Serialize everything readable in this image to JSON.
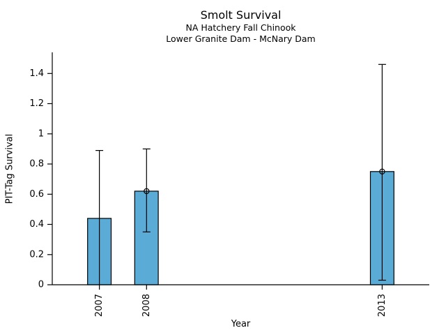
{
  "chart_data": {
    "type": "bar",
    "title": "Smolt Survival",
    "subtitle1": "NA Hatchery Fall Chinook",
    "subtitle2": "Lower Granite Dam - McNary Dam",
    "xlabel": "Year",
    "ylabel": "PIT-Tag Survival",
    "categories": [
      "2007",
      "2008",
      "2013"
    ],
    "x": [
      2007,
      2008,
      2013
    ],
    "series": [
      {
        "name": "PIT-Tag Survival",
        "values": [
          0.44,
          0.62,
          0.75
        ],
        "ci_low": [
          0,
          0.35,
          0.03
        ],
        "ci_high": [
          0.89,
          0.9,
          1.46
        ],
        "point_marker": [
          false,
          true,
          true
        ],
        "lower_cap": [
          false,
          true,
          true
        ]
      }
    ],
    "y_ticks": [
      0,
      0.2,
      0.4,
      0.6,
      0.8,
      1,
      1.2,
      1.4
    ],
    "y_tick_labels": [
      "0",
      "0.2",
      "0.4",
      "0.6",
      "0.8",
      "1",
      "1.2",
      "1.4"
    ],
    "xlim": [
      2006,
      2014
    ],
    "ylim": [
      0,
      1.54
    ],
    "bar_width_years": 0.5,
    "bar_fill_color": "#5aabd6",
    "bar_edge_color": "#000000",
    "error_bar_color": "#000000",
    "marker_style": "open-circle",
    "grid": false,
    "legend": "none"
  }
}
